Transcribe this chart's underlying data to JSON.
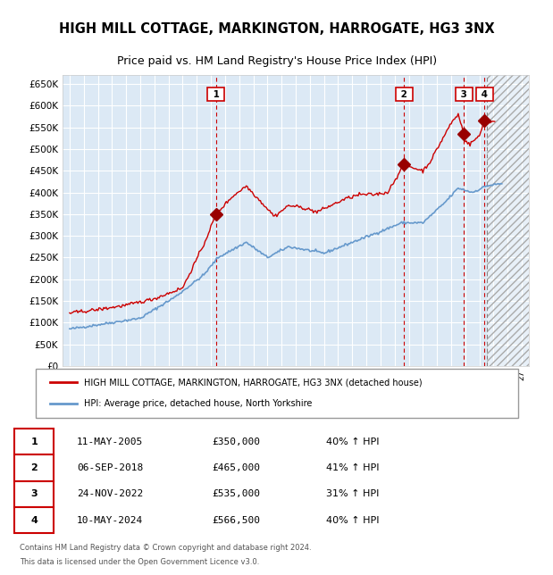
{
  "title": "HIGH MILL COTTAGE, MARKINGTON, HARROGATE, HG3 3NX",
  "subtitle": "Price paid vs. HM Land Registry's House Price Index (HPI)",
  "legend_red": "HIGH MILL COTTAGE, MARKINGTON, HARROGATE, HG3 3NX (detached house)",
  "legend_blue": "HPI: Average price, detached house, North Yorkshire",
  "footer1": "Contains HM Land Registry data © Crown copyright and database right 2024.",
  "footer2": "This data is licensed under the Open Government Licence v3.0.",
  "purchases": [
    {
      "num": 1,
      "date": "11-MAY-2005",
      "price": 350000,
      "pct": "40%",
      "dir": "↑"
    },
    {
      "num": 2,
      "date": "06-SEP-2018",
      "price": 465000,
      "pct": "41%",
      "dir": "↑"
    },
    {
      "num": 3,
      "date": "24-NOV-2022",
      "price": 535000,
      "pct": "31%",
      "dir": "↑"
    },
    {
      "num": 4,
      "date": "10-MAY-2024",
      "price": 566500,
      "pct": "40%",
      "dir": "↑"
    }
  ],
  "purchase_dates_decimal": [
    2005.36,
    2018.68,
    2022.9,
    2024.36
  ],
  "purchase_prices": [
    350000,
    465000,
    535000,
    566500
  ],
  "ylim": [
    0,
    670000
  ],
  "yticks": [
    0,
    50000,
    100000,
    150000,
    200000,
    250000,
    300000,
    350000,
    400000,
    450000,
    500000,
    550000,
    600000,
    650000
  ],
  "xlim_start": 1994.5,
  "xlim_end": 2027.5,
  "future_start": 2024.5,
  "bg_color": "#dce9f5",
  "grid_color": "#ffffff",
  "red_color": "#cc0000",
  "blue_color": "#6699cc",
  "marker_color": "#990000"
}
